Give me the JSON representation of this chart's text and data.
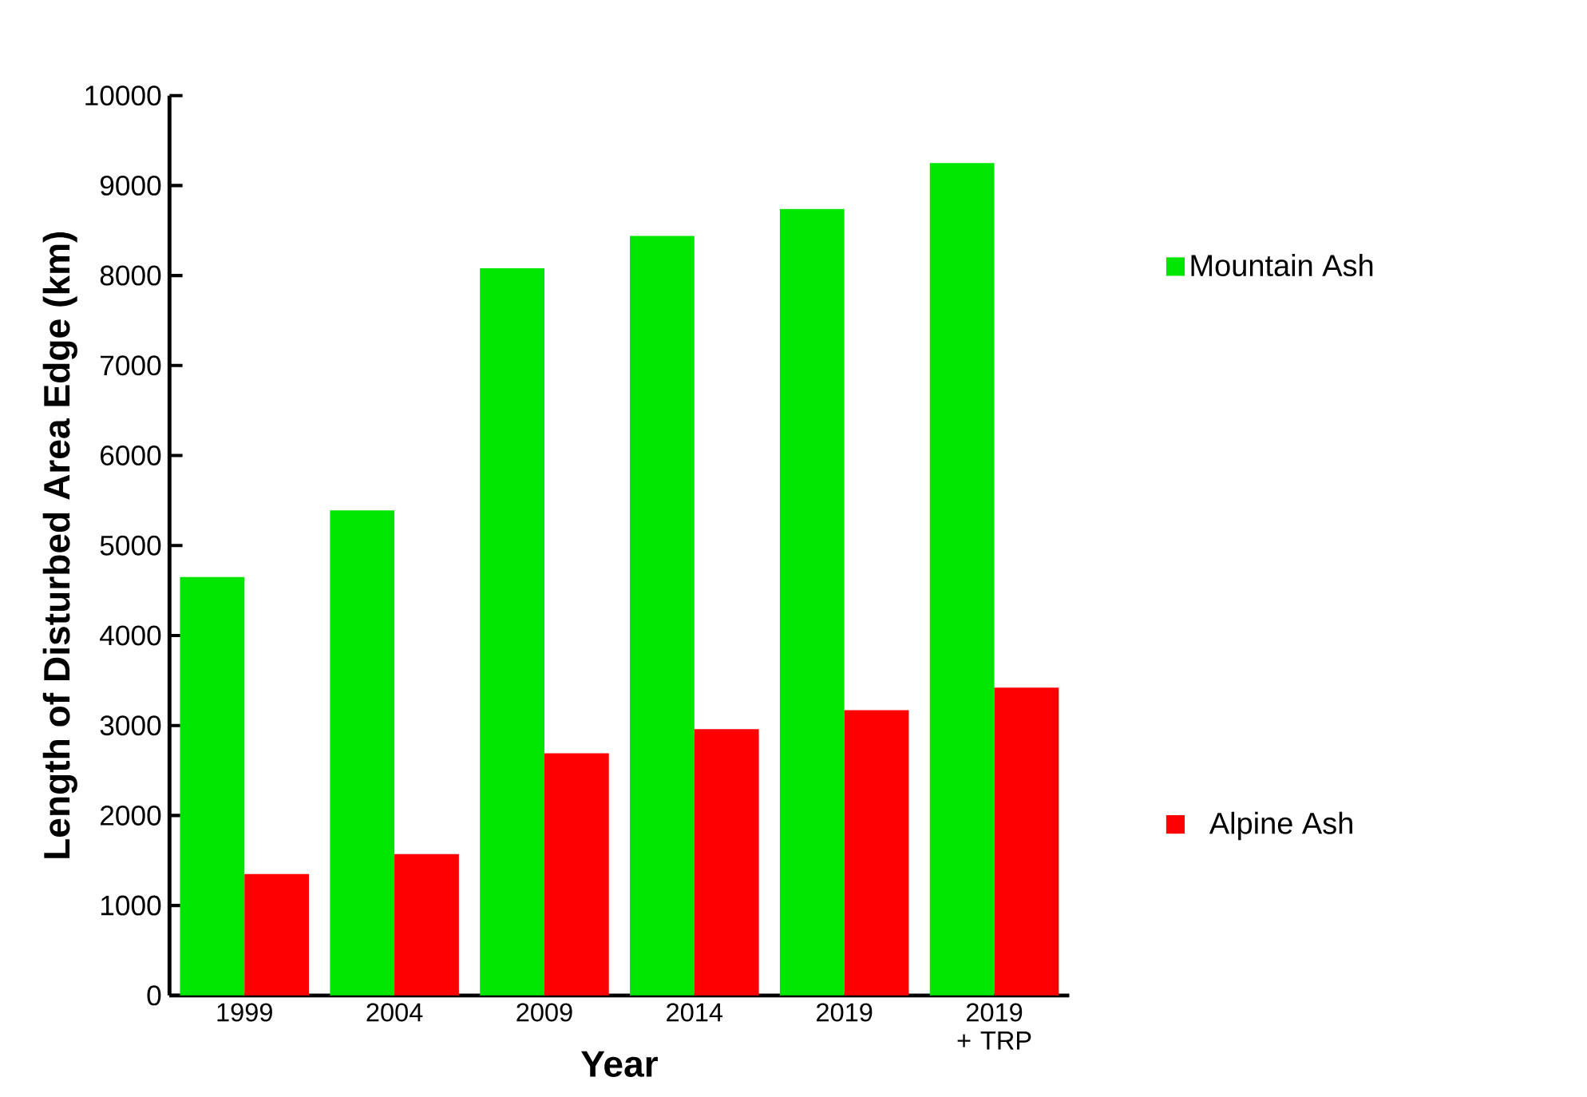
{
  "chart_data": {
    "type": "bar",
    "xlabel": "Year",
    "ylabel": "Length of Disturbed Area Edge (km)",
    "categories": [
      "1999",
      "2004",
      "2009",
      "2014",
      "2019",
      "2019 + TRP"
    ],
    "series": [
      {
        "name": "Mountain Ash",
        "color": "#00e600",
        "values": [
          4650,
          5390,
          8080,
          8440,
          8740,
          9250
        ]
      },
      {
        "name": "Alpine Ash",
        "color": "#ff0000",
        "values": [
          1350,
          1570,
          2690,
          2960,
          3170,
          3420
        ]
      }
    ],
    "ylim": [
      0,
      10000
    ],
    "yticks": [
      0,
      1000,
      2000,
      3000,
      4000,
      5000,
      6000,
      7000,
      8000,
      9000,
      10000
    ],
    "legend": "right",
    "grid": false
  }
}
